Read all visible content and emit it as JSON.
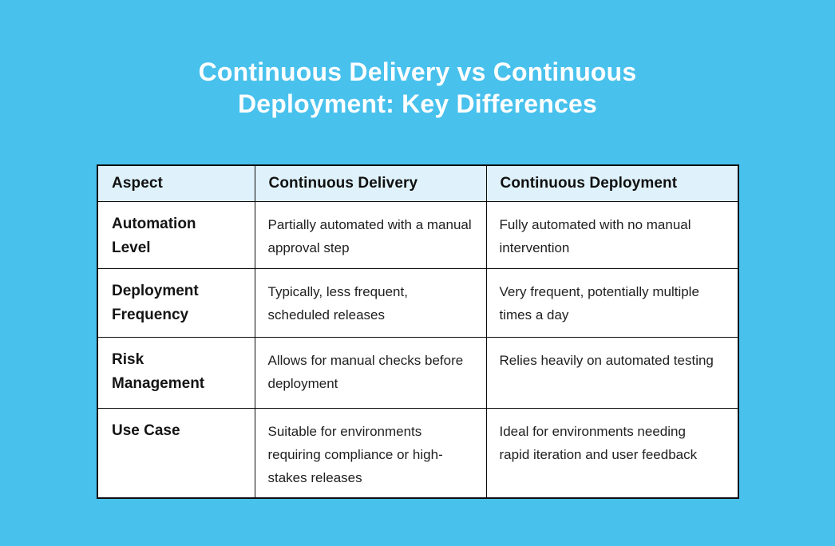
{
  "title": {
    "full": "Continuous Delivery vs Continuous Deployment: Key Differences",
    "line1": "Continuous Delivery vs Continuous",
    "line2": "Deployment: Key Differences"
  },
  "colors": {
    "background": "#48C1ED",
    "table_header_bg": "#DFF2FB",
    "table_body_bg": "#FFFFFF",
    "border": "#0D0D0D",
    "title_text": "#FFFFFF",
    "body_text": "#1F1F1F"
  },
  "table": {
    "columns": [
      "Aspect",
      "Continuous Delivery",
      "Continuous Deployment"
    ],
    "rows": [
      {
        "aspect": "Automation Level",
        "delivery": "Partially automated with a manual approval step",
        "deployment": "Fully automated with no manual intervention"
      },
      {
        "aspect": "Deployment Frequency",
        "delivery": "Typically, less frequent, scheduled releases",
        "deployment": "Very frequent, potentially multiple times a day"
      },
      {
        "aspect": "Risk Management",
        "delivery": "Allows for manual checks before deployment",
        "deployment": "Relies heavily on automated testing"
      },
      {
        "aspect": "Use Case",
        "delivery": "Suitable for environments requiring compliance or high-stakes releases",
        "deployment": "Ideal for environments needing rapid iteration and user feedback"
      }
    ]
  },
  "chart_data": {
    "type": "table",
    "title": "Continuous Delivery vs Continuous Deployment: Key Differences",
    "columns": [
      "Aspect",
      "Continuous Delivery",
      "Continuous Deployment"
    ],
    "rows": [
      [
        "Automation Level",
        "Partially automated with a manual approval step",
        "Fully automated with no manual intervention"
      ],
      [
        "Deployment Frequency",
        "Typically, less frequent, scheduled releases",
        "Very frequent, potentially multiple times a day"
      ],
      [
        "Risk Management",
        "Allows for manual checks before deployment",
        "Relies heavily on automated testing"
      ],
      [
        "Use Case",
        "Suitable for environments requiring compliance or high-stakes releases",
        "Ideal for environments needing rapid iteration and user feedback"
      ]
    ]
  }
}
